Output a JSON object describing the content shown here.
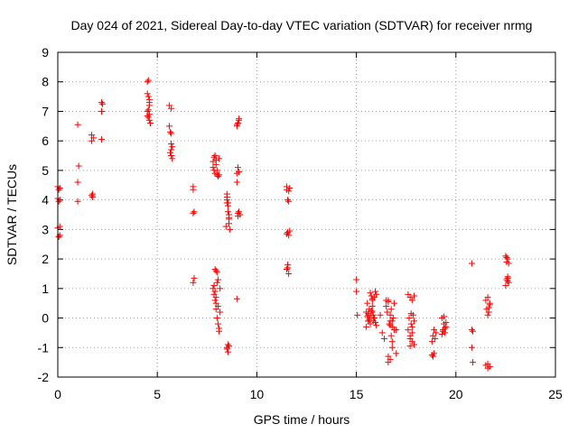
{
  "chart_data": {
    "type": "scatter",
    "title": "Day 024 of 2021, Sidereal Day-to-day VTEC variation (SDTVAR) for receiver nrmg",
    "xlabel": "GPS time / hours",
    "ylabel": "SDTVAR / TECUs",
    "xlim": [
      0,
      25
    ],
    "ylim": [
      -2,
      9
    ],
    "xticks": [
      0,
      5,
      10,
      15,
      20,
      25
    ],
    "yticks": [
      -2,
      -1,
      0,
      1,
      2,
      3,
      4,
      5,
      6,
      7,
      8,
      9
    ],
    "xtick_labels": [
      "0",
      "5",
      "10",
      "15",
      "20",
      "25"
    ],
    "ytick_labels": [
      "-2",
      "-1",
      "0",
      "1",
      "2",
      "3",
      "4",
      "5",
      "6",
      "7",
      "8",
      "9"
    ],
    "grid": true,
    "marker": "+",
    "color": "#ff0000",
    "series": [
      {
        "name": "nrmg",
        "x": [
          0.0,
          0.0,
          0.0,
          0.05,
          0.05,
          0.05,
          0.1,
          0.1,
          0.1,
          0.1,
          1.0,
          1.0,
          1.0,
          1.05,
          1.7,
          1.7,
          1.7,
          1.75,
          1.75,
          1.8,
          2.2,
          2.2,
          2.25,
          2.2,
          4.5,
          4.5,
          4.5,
          4.55,
          4.55,
          4.6,
          4.6,
          4.6,
          4.55,
          4.6,
          4.5,
          4.65,
          4.6,
          4.55,
          5.6,
          5.6,
          5.65,
          5.7,
          5.7,
          5.75,
          5.7,
          5.65,
          5.7,
          5.75,
          5.7,
          6.8,
          6.8,
          6.85,
          6.8,
          6.85,
          6.8,
          7.8,
          7.8,
          7.85,
          7.85,
          7.9,
          7.9,
          7.95,
          7.95,
          8.0,
          8.0,
          8.05,
          8.1,
          8.1,
          7.9,
          7.95,
          8.0,
          7.8,
          7.85,
          7.9,
          7.9,
          7.95,
          7.95,
          8.0,
          8.0,
          8.05,
          8.05,
          8.1,
          8.1,
          8.15,
          8.15,
          7.85,
          7.95,
          8.05,
          8.5,
          8.5,
          8.55,
          8.55,
          8.6,
          8.6,
          8.65,
          8.5,
          8.55,
          8.6,
          8.6,
          8.45,
          8.5,
          8.55,
          8.5,
          8.55,
          8.6,
          8.5,
          9.0,
          9.0,
          9.05,
          9.05,
          9.1,
          9.1,
          9.15,
          9.0,
          9.05,
          9.1,
          9.0,
          9.05,
          9.1,
          9.0,
          11.5,
          11.5,
          11.55,
          11.6,
          11.6,
          11.65,
          11.5,
          11.55,
          11.6,
          11.65,
          11.5,
          11.55,
          11.6,
          11.55,
          15.0,
          15.0,
          15.05,
          15.5,
          15.6,
          15.7,
          15.8,
          15.9,
          16.0,
          15.55,
          15.65,
          15.75,
          15.85,
          15.95,
          15.5,
          15.6,
          15.7,
          15.8,
          15.9,
          16.0,
          15.55,
          15.65,
          15.75,
          15.85,
          15.95,
          15.6,
          15.7,
          15.8,
          15.9,
          15.6,
          15.8,
          16.2,
          16.3,
          16.5,
          16.6,
          16.7,
          16.8,
          16.9,
          16.4,
          16.55,
          16.65,
          16.75,
          16.85,
          16.5,
          16.6,
          16.7,
          16.8,
          16.9,
          16.6,
          16.7,
          16.8,
          16.7,
          16.75,
          16.6,
          16.8,
          17.0,
          17.0,
          17.6,
          17.7,
          17.8,
          17.9,
          17.6,
          17.7,
          17.8,
          17.9,
          17.65,
          17.75,
          17.85,
          17.7,
          17.8,
          17.75,
          17.8,
          17.9,
          17.7,
          18.8,
          18.9,
          19.0,
          18.85,
          18.95,
          18.8,
          18.9,
          18.85,
          19.3,
          19.4,
          19.5,
          19.35,
          19.45,
          19.3,
          19.4,
          19.5,
          19.35,
          19.45,
          20.8,
          20.8,
          20.85,
          20.8,
          20.85,
          21.5,
          21.6,
          21.7,
          21.55,
          21.65,
          21.6,
          21.7,
          21.5,
          21.6,
          21.7,
          21.6,
          21.65,
          22.5,
          22.55,
          22.6,
          22.6,
          22.65,
          22.5,
          22.55,
          22.6,
          22.65,
          22.55,
          22.6
        ],
        "y": [
          4.45,
          4.05,
          3.05,
          4.35,
          3.95,
          2.75,
          4.4,
          4.0,
          3.1,
          2.8,
          6.55,
          4.6,
          3.95,
          5.15,
          6.2,
          6.0,
          4.15,
          4.2,
          4.1,
          6.1,
          7.3,
          7.0,
          7.25,
          6.05,
          8.0,
          7.6,
          7.0,
          8.05,
          7.5,
          7.3,
          6.9,
          6.7,
          6.8,
          7.2,
          6.85,
          6.6,
          7.4,
          7.05,
          7.2,
          6.5,
          6.3,
          7.1,
          6.25,
          5.8,
          5.7,
          5.6,
          5.5,
          5.4,
          5.9,
          4.45,
          4.35,
          3.6,
          3.55,
          1.35,
          1.2,
          5.3,
          5.1,
          5.0,
          5.45,
          5.5,
          4.9,
          5.2,
          5.35,
          5.0,
          4.85,
          4.8,
          4.85,
          5.4,
          1.65,
          1.6,
          1.55,
          1.0,
          0.8,
          0.6,
          0.9,
          0.5,
          0.3,
          1.2,
          0.0,
          1.3,
          -0.2,
          -0.35,
          -0.45,
          1.0,
          0.2,
          1.1,
          0.7,
          0.4,
          4.2,
          3.9,
          3.8,
          3.6,
          3.4,
          3.2,
          3.0,
          4.0,
          3.9,
          3.5,
          3.35,
          3.1,
          4.1,
          -0.9,
          -1.0,
          -1.15,
          -0.95,
          -1.05,
          6.5,
          4.9,
          5.1,
          6.6,
          6.75,
          3.6,
          3.5,
          4.6,
          3.45,
          6.7,
          0.65,
          3.55,
          4.95,
          6.55,
          4.45,
          4.35,
          4.0,
          3.95,
          4.3,
          4.4,
          2.85,
          2.9,
          2.8,
          2.95,
          1.65,
          1.8,
          1.5,
          1.7,
          1.3,
          0.9,
          0.1,
          0.2,
          -0.1,
          0.85,
          0.6,
          0.0,
          -0.25,
          0.05,
          0.3,
          0.75,
          0.1,
          -0.15,
          -0.3,
          0.15,
          -0.2,
          0.4,
          0.7,
          0.8,
          0.5,
          -0.05,
          0.25,
          -0.1,
          0.9,
          0.1,
          0.05,
          0.2,
          0.0,
          -0.1,
          0.65,
          0.1,
          -0.5,
          0.6,
          -1.5,
          -1.4,
          -0.3,
          0.5,
          -0.7,
          0.2,
          -0.2,
          -0.6,
          0.0,
          0.4,
          -1.3,
          0.1,
          -1.0,
          -0.4,
          0.55,
          -0.25,
          -0.8,
          -0.1,
          0.3,
          0.6,
          -0.1,
          -1.2,
          -0.4,
          0.8,
          0.7,
          0.6,
          0.75,
          -0.4,
          -0.6,
          -0.8,
          -0.9,
          0.0,
          -0.2,
          0.1,
          -0.7,
          -0.5,
          0.15,
          -0.3,
          -0.1,
          -0.95,
          -1.25,
          -1.2,
          -0.5,
          -0.6,
          -0.7,
          -0.8,
          -0.4,
          -1.3,
          0.0,
          -0.2,
          -0.3,
          -0.4,
          -0.5,
          -0.55,
          0.05,
          -0.15,
          -0.45,
          -0.35,
          1.85,
          -0.4,
          -0.45,
          -1.0,
          -1.5,
          0.6,
          0.7,
          0.45,
          0.3,
          0.2,
          0.1,
          0.5,
          -1.6,
          -1.55,
          -1.65,
          -1.7,
          0.35,
          2.1,
          1.9,
          2.0,
          1.35,
          1.2,
          1.1,
          1.3,
          1.4,
          1.85,
          2.05,
          1.25
        ]
      }
    ]
  }
}
